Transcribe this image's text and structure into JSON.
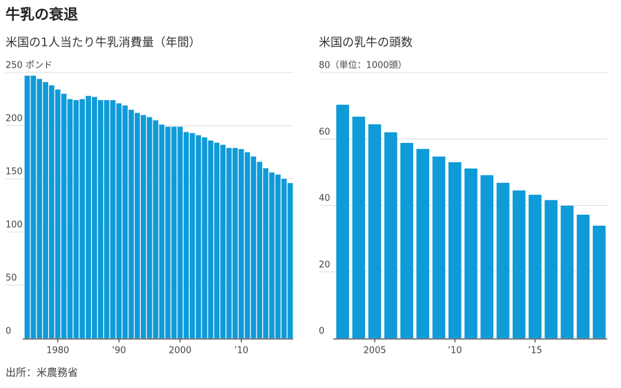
{
  "title": "牛乳の衰退",
  "source": "出所：米農務省",
  "chart_data": [
    {
      "type": "bar",
      "title": "米国の1人当たり牛乳消費量（年間）",
      "color": "#0f9ad8",
      "x": [
        1975,
        1976,
        1977,
        1978,
        1979,
        1980,
        1981,
        1982,
        1983,
        1984,
        1985,
        1986,
        1987,
        1988,
        1989,
        1990,
        1991,
        1992,
        1993,
        1994,
        1995,
        1996,
        1997,
        1998,
        1999,
        2000,
        2001,
        2002,
        2003,
        2004,
        2005,
        2006,
        2007,
        2008,
        2009,
        2010,
        2011,
        2012,
        2013,
        2014,
        2015,
        2016,
        2017,
        2018
      ],
      "values": [
        247,
        247,
        244,
        241,
        238,
        234,
        230,
        225,
        224,
        225,
        228,
        227,
        224,
        224,
        224,
        221,
        219,
        215,
        212,
        210,
        208,
        205,
        201,
        199,
        199,
        199,
        194,
        193,
        191,
        189,
        186,
        184,
        182,
        179,
        179,
        178,
        175,
        171,
        166,
        160,
        156,
        154,
        150,
        146
      ],
      "xlim": [
        1974.5,
        2018.5
      ],
      "xticks": [
        1980,
        {
          "value": 1990,
          "label": "’90"
        },
        2000,
        {
          "value": 2010,
          "label": "’10"
        }
      ],
      "ylim": [
        0,
        250
      ],
      "yticks": [
        0,
        50,
        100,
        150,
        200,
        {
          "value": 250,
          "label": "250 ポンド"
        }
      ],
      "grid": true
    },
    {
      "type": "bar",
      "title": "米国の乳牛の頭数",
      "color": "#0f9ad8",
      "x": [
        2003,
        2004,
        2005,
        2006,
        2007,
        2008,
        2009,
        2010,
        2011,
        2012,
        2013,
        2014,
        2015,
        2016,
        2017,
        2018,
        2019
      ],
      "values": [
        70.3,
        66.7,
        64.4,
        62,
        58.8,
        57,
        54.7,
        53,
        51.1,
        49.1,
        46.8,
        44.5,
        43.2,
        41.6,
        39.9,
        37.2,
        33.9
      ],
      "xlim": [
        2002.5,
        2019.5
      ],
      "xticks": [
        2005,
        {
          "value": 2010,
          "label": "’10"
        },
        {
          "value": 2015,
          "label": "’15"
        }
      ],
      "ylim": [
        0,
        80
      ],
      "yticks": [
        0,
        20,
        40,
        60,
        {
          "value": 80,
          "label": "80（単位：1000頭）"
        }
      ],
      "grid": true
    }
  ]
}
